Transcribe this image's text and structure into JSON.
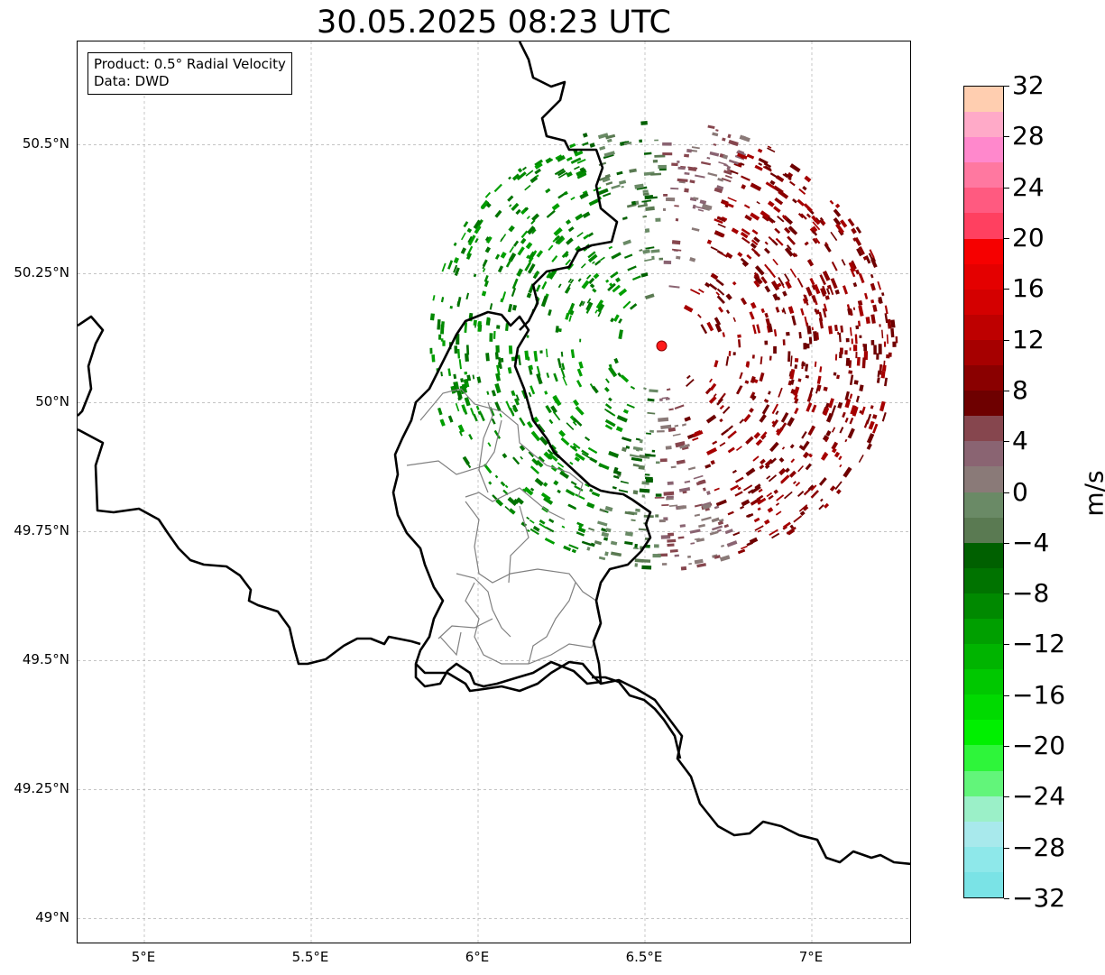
{
  "title": "30.05.2025 08:23 UTC",
  "info_box": {
    "product": "Product: 0.5° Radial Velocity",
    "data_source": "Data: DWD"
  },
  "map": {
    "lon_range": [
      4.8,
      7.3
    ],
    "lat_range": [
      48.95,
      50.7
    ],
    "gridlines": true,
    "lat_ticks": [
      {
        "value": 50.5,
        "label": "50.5°N"
      },
      {
        "value": 50.25,
        "label": "50.25°N"
      },
      {
        "value": 50.0,
        "label": "50°N"
      },
      {
        "value": 49.75,
        "label": "49.75°N"
      },
      {
        "value": 49.5,
        "label": "49.5°N"
      },
      {
        "value": 49.25,
        "label": "49.25°N"
      },
      {
        "value": 49.0,
        "label": "49°N"
      }
    ],
    "lon_ticks": [
      {
        "value": 5.0,
        "label": "5°E"
      },
      {
        "value": 5.5,
        "label": "5.5°E"
      },
      {
        "value": 6.0,
        "label": "6°E"
      },
      {
        "value": 6.5,
        "label": "6.5°E"
      },
      {
        "value": 7.0,
        "label": "7°E"
      }
    ],
    "radar_site": {
      "lon": 6.55,
      "lat": 50.11,
      "color": "#ff1a1a"
    },
    "border_color": "#000000",
    "subdivision_color": "#808080"
  },
  "colorbar": {
    "unit": "m/s",
    "min": -32,
    "max": 32,
    "tick_labels": [
      "−32",
      "−28",
      "−24",
      "−20",
      "−16",
      "−12",
      "−8",
      "−4",
      "0",
      "4",
      "8",
      "12",
      "16",
      "20",
      "24",
      "28",
      "32"
    ],
    "colors": [
      "#7ae3e6",
      "#8ee8ea",
      "#a8e9ec",
      "#9bf0c8",
      "#62f57a",
      "#2ef53a",
      "#00f000",
      "#00da00",
      "#00c800",
      "#00b400",
      "#009f00",
      "#008900",
      "#007300",
      "#006000",
      "#5a7a52",
      "#6a8a66",
      "#8a7a78",
      "#8a6472",
      "#86464e",
      "#6e0000",
      "#8a0000",
      "#a60000",
      "#be0000",
      "#d40000",
      "#e40000",
      "#f60000",
      "#ff4060",
      "#ff5a80",
      "#ff78a0",
      "#ff88cc",
      "#ffaac8",
      "#ffceb0"
    ]
  }
}
